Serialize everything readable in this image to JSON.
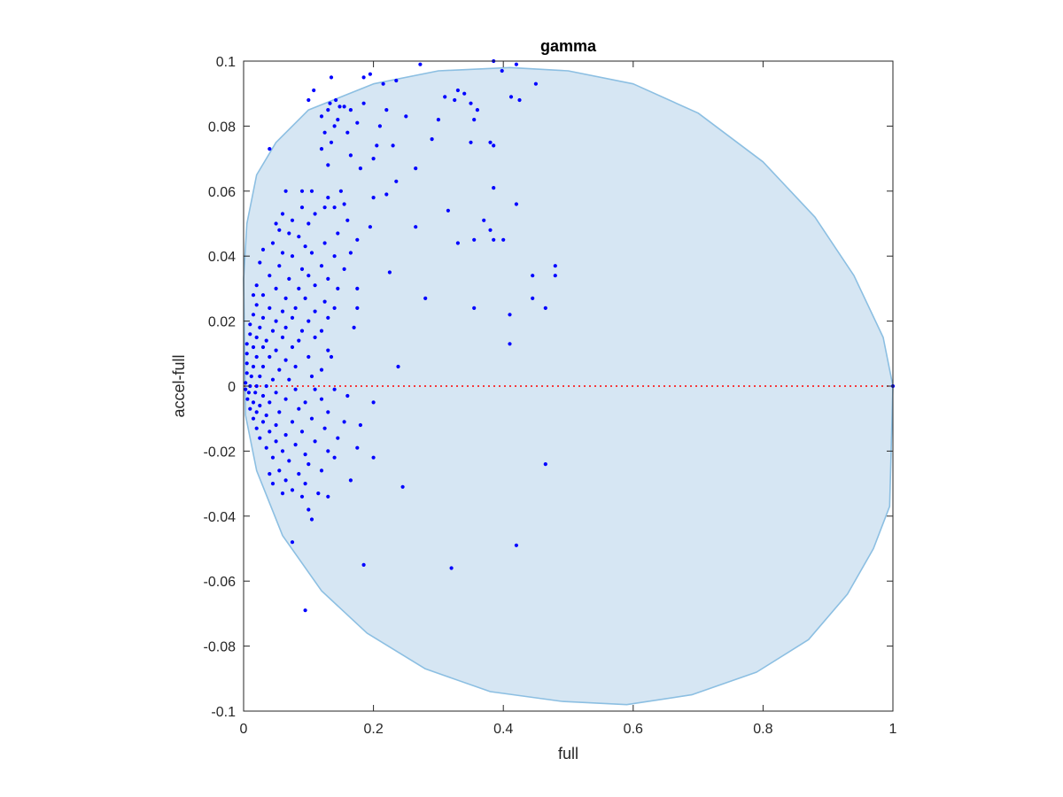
{
  "chart_data": {
    "type": "scatter",
    "title": "gamma",
    "xlabel": "full",
    "ylabel": "accel-full",
    "xlim": [
      0,
      1
    ],
    "ylim": [
      -0.1,
      0.1
    ],
    "xticks": [
      0,
      0.2,
      0.4,
      0.6,
      0.8,
      1
    ],
    "xtick_labels": [
      "0",
      "0.2",
      "0.4",
      "0.6",
      "0.8",
      "1"
    ],
    "yticks": [
      0.1,
      0.08,
      0.06,
      0.04,
      0.02,
      0,
      -0.02,
      -0.04,
      -0.06,
      -0.08,
      -0.1
    ],
    "ytick_labels": [
      "0.1",
      "0.08",
      "0.06",
      "0.04",
      "0.02",
      "0",
      "-0.02",
      "-0.04",
      "-0.06",
      "-0.08",
      "-0.1"
    ],
    "grid": false,
    "reference_line": {
      "y": 0,
      "style": "dotted",
      "color": "#ff0000"
    },
    "region": {
      "shape": "closed curve",
      "fill": "#d6e6f3",
      "stroke": "#8cbfe2",
      "boundary": [
        [
          0,
          0.033
        ],
        [
          0.005,
          0.05
        ],
        [
          0.02,
          0.065
        ],
        [
          0.05,
          0.075
        ],
        [
          0.1,
          0.085
        ],
        [
          0.2,
          0.093
        ],
        [
          0.3,
          0.097
        ],
        [
          0.41,
          0.098
        ],
        [
          0.5,
          0.097
        ],
        [
          0.6,
          0.093
        ],
        [
          0.7,
          0.084
        ],
        [
          0.8,
          0.069
        ],
        [
          0.88,
          0.052
        ],
        [
          0.94,
          0.034
        ],
        [
          0.985,
          0.015
        ],
        [
          1,
          0
        ],
        [
          0.995,
          -0.037
        ],
        [
          0.97,
          -0.05
        ],
        [
          0.93,
          -0.064
        ],
        [
          0.87,
          -0.078
        ],
        [
          0.79,
          -0.088
        ],
        [
          0.69,
          -0.095
        ],
        [
          0.59,
          -0.098
        ],
        [
          0.49,
          -0.097
        ],
        [
          0.38,
          -0.094
        ],
        [
          0.28,
          -0.087
        ],
        [
          0.19,
          -0.076
        ],
        [
          0.12,
          -0.063
        ],
        [
          0.06,
          -0.046
        ],
        [
          0.02,
          -0.026
        ],
        [
          0.003,
          -0.009
        ]
      ]
    },
    "series": [
      {
        "marker_color": "#0000ff",
        "points": [
          [
            0.385,
            0.1
          ],
          [
            0.272,
            0.099
          ],
          [
            0.42,
            0.099
          ],
          [
            0.135,
            0.095
          ],
          [
            0.185,
            0.095
          ],
          [
            0.195,
            0.096
          ],
          [
            0.398,
            0.097
          ],
          [
            0.108,
            0.091
          ],
          [
            0.215,
            0.093
          ],
          [
            0.235,
            0.094
          ],
          [
            0.45,
            0.093
          ],
          [
            0.1,
            0.088
          ],
          [
            0.133,
            0.087
          ],
          [
            0.142,
            0.088
          ],
          [
            0.148,
            0.086
          ],
          [
            0.155,
            0.086
          ],
          [
            0.33,
            0.091
          ],
          [
            0.34,
            0.09
          ],
          [
            0.31,
            0.089
          ],
          [
            0.325,
            0.088
          ],
          [
            0.412,
            0.089
          ],
          [
            0.425,
            0.088
          ],
          [
            0.35,
            0.087
          ],
          [
            0.185,
            0.087
          ],
          [
            0.165,
            0.085
          ],
          [
            0.22,
            0.085
          ],
          [
            0.13,
            0.085
          ],
          [
            0.36,
            0.085
          ],
          [
            0.12,
            0.083
          ],
          [
            0.145,
            0.082
          ],
          [
            0.25,
            0.083
          ],
          [
            0.3,
            0.082
          ],
          [
            0.355,
            0.082
          ],
          [
            0.14,
            0.08
          ],
          [
            0.175,
            0.081
          ],
          [
            0.21,
            0.08
          ],
          [
            0.125,
            0.078
          ],
          [
            0.16,
            0.078
          ],
          [
            0.29,
            0.076
          ],
          [
            0.38,
            0.075
          ],
          [
            0.385,
            0.074
          ],
          [
            0.35,
            0.075
          ],
          [
            0.205,
            0.074
          ],
          [
            0.23,
            0.074
          ],
          [
            0.04,
            0.073
          ],
          [
            0.135,
            0.075
          ],
          [
            0.12,
            0.073
          ],
          [
            0.165,
            0.071
          ],
          [
            0.2,
            0.07
          ],
          [
            0.265,
            0.067
          ],
          [
            0.13,
            0.068
          ],
          [
            0.18,
            0.067
          ],
          [
            0.235,
            0.063
          ],
          [
            0.385,
            0.061
          ],
          [
            0.09,
            0.06
          ],
          [
            0.105,
            0.06
          ],
          [
            0.15,
            0.06
          ],
          [
            0.065,
            0.06
          ],
          [
            0.13,
            0.058
          ],
          [
            0.2,
            0.058
          ],
          [
            0.22,
            0.059
          ],
          [
            0.155,
            0.056
          ],
          [
            0.42,
            0.056
          ],
          [
            0.125,
            0.055
          ],
          [
            0.14,
            0.055
          ],
          [
            0.09,
            0.055
          ],
          [
            0.06,
            0.053
          ],
          [
            0.11,
            0.053
          ],
          [
            0.315,
            0.054
          ],
          [
            0.05,
            0.05
          ],
          [
            0.075,
            0.051
          ],
          [
            0.1,
            0.05
          ],
          [
            0.16,
            0.051
          ],
          [
            0.195,
            0.049
          ],
          [
            0.265,
            0.049
          ],
          [
            0.37,
            0.051
          ],
          [
            0.055,
            0.048
          ],
          [
            0.07,
            0.047
          ],
          [
            0.085,
            0.046
          ],
          [
            0.145,
            0.047
          ],
          [
            0.175,
            0.045
          ],
          [
            0.38,
            0.048
          ],
          [
            0.045,
            0.044
          ],
          [
            0.095,
            0.043
          ],
          [
            0.125,
            0.044
          ],
          [
            0.33,
            0.044
          ],
          [
            0.355,
            0.045
          ],
          [
            0.385,
            0.045
          ],
          [
            0.4,
            0.045
          ],
          [
            0.03,
            0.042
          ],
          [
            0.06,
            0.041
          ],
          [
            0.075,
            0.04
          ],
          [
            0.105,
            0.041
          ],
          [
            0.14,
            0.04
          ],
          [
            0.165,
            0.041
          ],
          [
            0.025,
            0.038
          ],
          [
            0.055,
            0.037
          ],
          [
            0.09,
            0.036
          ],
          [
            0.12,
            0.037
          ],
          [
            0.155,
            0.036
          ],
          [
            0.48,
            0.037
          ],
          [
            0.04,
            0.034
          ],
          [
            0.07,
            0.033
          ],
          [
            0.1,
            0.034
          ],
          [
            0.13,
            0.033
          ],
          [
            0.225,
            0.035
          ],
          [
            0.445,
            0.034
          ],
          [
            0.48,
            0.034
          ],
          [
            0.02,
            0.031
          ],
          [
            0.05,
            0.03
          ],
          [
            0.085,
            0.03
          ],
          [
            0.11,
            0.031
          ],
          [
            0.145,
            0.03
          ],
          [
            0.175,
            0.03
          ],
          [
            0.015,
            0.028
          ],
          [
            0.03,
            0.028
          ],
          [
            0.065,
            0.027
          ],
          [
            0.095,
            0.027
          ],
          [
            0.125,
            0.026
          ],
          [
            0.28,
            0.027
          ],
          [
            0.445,
            0.027
          ],
          [
            0.02,
            0.025
          ],
          [
            0.04,
            0.024
          ],
          [
            0.06,
            0.023
          ],
          [
            0.08,
            0.024
          ],
          [
            0.11,
            0.023
          ],
          [
            0.14,
            0.024
          ],
          [
            0.175,
            0.024
          ],
          [
            0.355,
            0.024
          ],
          [
            0.465,
            0.024
          ],
          [
            0.015,
            0.022
          ],
          [
            0.03,
            0.021
          ],
          [
            0.05,
            0.02
          ],
          [
            0.075,
            0.021
          ],
          [
            0.1,
            0.02
          ],
          [
            0.13,
            0.021
          ],
          [
            0.41,
            0.022
          ],
          [
            0.01,
            0.019
          ],
          [
            0.025,
            0.018
          ],
          [
            0.045,
            0.017
          ],
          [
            0.065,
            0.018
          ],
          [
            0.09,
            0.017
          ],
          [
            0.12,
            0.017
          ],
          [
            0.17,
            0.018
          ],
          [
            0.01,
            0.016
          ],
          [
            0.02,
            0.015
          ],
          [
            0.035,
            0.014
          ],
          [
            0.06,
            0.015
          ],
          [
            0.085,
            0.014
          ],
          [
            0.11,
            0.015
          ],
          [
            0.41,
            0.013
          ],
          [
            0.005,
            0.013
          ],
          [
            0.015,
            0.012
          ],
          [
            0.03,
            0.012
          ],
          [
            0.05,
            0.011
          ],
          [
            0.075,
            0.012
          ],
          [
            0.13,
            0.011
          ],
          [
            0.005,
            0.01
          ],
          [
            0.02,
            0.009
          ],
          [
            0.04,
            0.009
          ],
          [
            0.065,
            0.008
          ],
          [
            0.1,
            0.009
          ],
          [
            0.135,
            0.009
          ],
          [
            0.005,
            0.007
          ],
          [
            0.015,
            0.006
          ],
          [
            0.03,
            0.006
          ],
          [
            0.055,
            0.005
          ],
          [
            0.08,
            0.006
          ],
          [
            0.12,
            0.005
          ],
          [
            0.005,
            0.004
          ],
          [
            0.012,
            0.003
          ],
          [
            0.025,
            0.003
          ],
          [
            0.045,
            0.002
          ],
          [
            0.07,
            0.002
          ],
          [
            0.105,
            0.003
          ],
          [
            0.238,
            0.006
          ],
          [
            0.003,
            0.001
          ],
          [
            0.01,
            0.0
          ],
          [
            0.02,
            0.0
          ],
          [
            0.035,
            0.0
          ],
          [
            0.003,
            -0.001
          ],
          [
            0.008,
            -0.002
          ],
          [
            0.018,
            -0.002
          ],
          [
            0.03,
            -0.003
          ],
          [
            0.05,
            -0.002
          ],
          [
            0.08,
            -0.001
          ],
          [
            0.11,
            -0.001
          ],
          [
            0.14,
            -0.001
          ],
          [
            0.006,
            -0.004
          ],
          [
            0.015,
            -0.005
          ],
          [
            0.025,
            -0.006
          ],
          [
            0.04,
            -0.005
          ],
          [
            0.065,
            -0.004
          ],
          [
            0.095,
            -0.005
          ],
          [
            0.12,
            -0.004
          ],
          [
            0.16,
            -0.003
          ],
          [
            0.01,
            -0.007
          ],
          [
            0.02,
            -0.008
          ],
          [
            0.035,
            -0.009
          ],
          [
            0.055,
            -0.008
          ],
          [
            0.085,
            -0.007
          ],
          [
            0.13,
            -0.008
          ],
          [
            0.2,
            -0.005
          ],
          [
            0.015,
            -0.01
          ],
          [
            0.03,
            -0.011
          ],
          [
            0.05,
            -0.012
          ],
          [
            0.075,
            -0.011
          ],
          [
            0.105,
            -0.01
          ],
          [
            0.155,
            -0.011
          ],
          [
            0.02,
            -0.013
          ],
          [
            0.04,
            -0.014
          ],
          [
            0.065,
            -0.015
          ],
          [
            0.09,
            -0.014
          ],
          [
            0.125,
            -0.013
          ],
          [
            0.18,
            -0.012
          ],
          [
            0.025,
            -0.016
          ],
          [
            0.05,
            -0.017
          ],
          [
            0.08,
            -0.018
          ],
          [
            0.11,
            -0.017
          ],
          [
            0.145,
            -0.016
          ],
          [
            0.035,
            -0.019
          ],
          [
            0.06,
            -0.02
          ],
          [
            0.095,
            -0.021
          ],
          [
            0.13,
            -0.02
          ],
          [
            0.175,
            -0.019
          ],
          [
            0.045,
            -0.022
          ],
          [
            0.07,
            -0.023
          ],
          [
            0.1,
            -0.024
          ],
          [
            0.14,
            -0.022
          ],
          [
            0.2,
            -0.022
          ],
          [
            0.055,
            -0.026
          ],
          [
            0.085,
            -0.027
          ],
          [
            0.12,
            -0.026
          ],
          [
            0.465,
            -0.024
          ],
          [
            0.04,
            -0.027
          ],
          [
            0.065,
            -0.029
          ],
          [
            0.095,
            -0.03
          ],
          [
            0.165,
            -0.029
          ],
          [
            0.045,
            -0.03
          ],
          [
            0.075,
            -0.032
          ],
          [
            0.115,
            -0.033
          ],
          [
            0.245,
            -0.031
          ],
          [
            0.06,
            -0.033
          ],
          [
            0.09,
            -0.034
          ],
          [
            0.13,
            -0.034
          ],
          [
            0.1,
            -0.038
          ],
          [
            0.105,
            -0.041
          ],
          [
            0.075,
            -0.048
          ],
          [
            0.42,
            -0.049
          ],
          [
            0.185,
            -0.055
          ],
          [
            0.32,
            -0.056
          ],
          [
            0.095,
            -0.069
          ]
        ]
      },
      {
        "marker_color": "#0000ff",
        "note_free": true,
        "points": [
          [
            1,
            0
          ]
        ]
      }
    ]
  }
}
